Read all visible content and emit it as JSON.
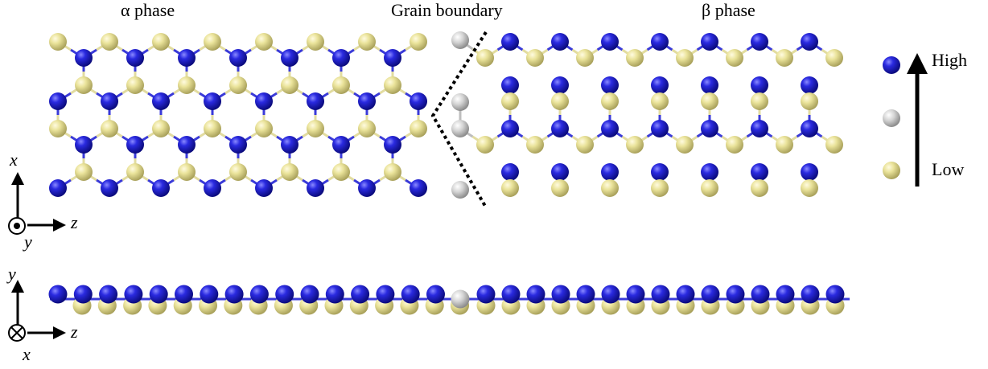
{
  "labels": {
    "alpha_phase": "α phase",
    "grain_boundary": "Grain boundary",
    "beta_phase": "β phase",
    "high": "High",
    "low": "Low"
  },
  "axes": {
    "top": {
      "vertical": "x",
      "horizontal": "z",
      "out_of_plane": "y"
    },
    "bottom": {
      "vertical": "y",
      "horizontal": "z",
      "into_plane": "x"
    }
  },
  "colors": {
    "high_atom": "#1c1ccc",
    "mid_atom": "#c8c8c8",
    "low_atom": "#e6e08a",
    "bond_blue": "#3a3ad8",
    "bond_yellow": "#e2dca0",
    "boundary_line": "#000000",
    "text": "#000000"
  },
  "legend": {
    "levels": [
      "high",
      "mid",
      "low"
    ]
  },
  "icons": {
    "out_of_plane": "dot-in-circle-icon",
    "into_plane": "cross-in-circle-icon"
  }
}
